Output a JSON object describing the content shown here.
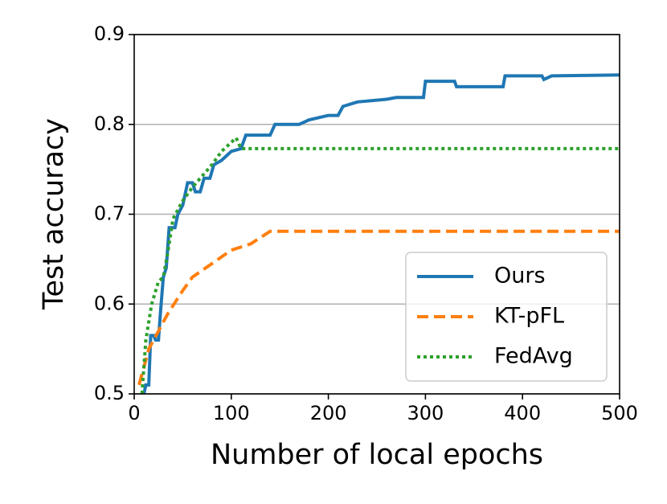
{
  "chart_data": {
    "type": "line",
    "xlabel": "Number of local epochs",
    "ylabel": "Test accuracy",
    "xlim": [
      0,
      500
    ],
    "xticks": [
      0,
      100,
      200,
      300,
      400,
      500
    ],
    "ylim": [
      0.5,
      0.9
    ],
    "yticks": [
      0.5,
      0.6,
      0.7,
      0.8,
      0.9
    ],
    "grid": true,
    "legend": "lower right",
    "series": [
      {
        "name": "Ours",
        "color": "#1f77b4",
        "style": "solid",
        "x": [
          10,
          12,
          15,
          17,
          20,
          22,
          25,
          27,
          30,
          33,
          36,
          42,
          45,
          50,
          55,
          60,
          63,
          68,
          72,
          78,
          82,
          90,
          95,
          100,
          110,
          115,
          140,
          145,
          170,
          180,
          200,
          210,
          215,
          230,
          260,
          270,
          298,
          300,
          330,
          332,
          380,
          382,
          420,
          422,
          430,
          500
        ],
        "values": [
          0.5,
          0.51,
          0.51,
          0.565,
          0.565,
          0.56,
          0.56,
          0.59,
          0.63,
          0.64,
          0.685,
          0.685,
          0.7,
          0.71,
          0.735,
          0.735,
          0.725,
          0.725,
          0.74,
          0.74,
          0.755,
          0.76,
          0.765,
          0.77,
          0.773,
          0.788,
          0.788,
          0.8,
          0.8,
          0.805,
          0.81,
          0.81,
          0.82,
          0.825,
          0.828,
          0.83,
          0.83,
          0.848,
          0.848,
          0.842,
          0.842,
          0.854,
          0.854,
          0.85,
          0.854,
          0.855
        ]
      },
      {
        "name": "KT-pFL",
        "color": "#ff7f0e",
        "style": "dashed",
        "x": [
          5,
          15,
          25,
          35,
          50,
          60,
          80,
          100,
          120,
          140,
          500
        ],
        "values": [
          0.51,
          0.55,
          0.57,
          0.59,
          0.615,
          0.63,
          0.645,
          0.66,
          0.667,
          0.681,
          0.681
        ]
      },
      {
        "name": "FedAvg",
        "color": "#2ca02c",
        "style": "dotted",
        "x": [
          8,
          12,
          18,
          25,
          30,
          35,
          40,
          50,
          60,
          80,
          90,
          100,
          105,
          110,
          500
        ],
        "values": [
          0.5,
          0.56,
          0.6,
          0.625,
          0.63,
          0.66,
          0.695,
          0.715,
          0.73,
          0.755,
          0.77,
          0.78,
          0.785,
          0.773,
          0.773
        ]
      }
    ]
  }
}
